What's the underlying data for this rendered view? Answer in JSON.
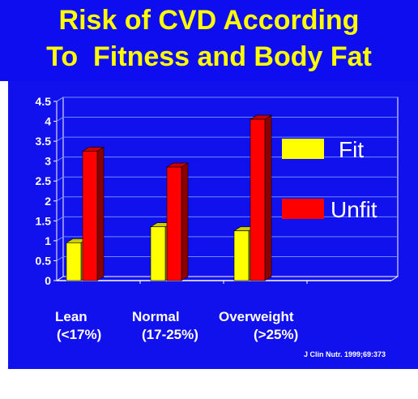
{
  "slide": {
    "title_line_1": "Risk of CVD According",
    "title_line_2": "To  Fitness and Body Fat",
    "citation": "J Clin Nutr. 1999;69:373",
    "colors": {
      "background": "#0d0df0",
      "title": "#ffff00",
      "text": "#ffffff",
      "fit": "#ffff00",
      "unfit": "#ff0000",
      "grid": "#6a8cff"
    }
  },
  "categories": [
    {
      "name": "Lean",
      "range": "(<17%)"
    },
    {
      "name": "Normal",
      "range": "(17-25%)"
    },
    {
      "name": "Overweight",
      "range": "(>25%)"
    }
  ],
  "chart_data": {
    "type": "bar",
    "categories": [
      "Lean (<17%)",
      "Normal (17-25%)",
      "Overweight (>25%)"
    ],
    "series": [
      {
        "name": "Fit",
        "values": [
          0.95,
          1.35,
          1.25
        ],
        "color": "#ffff00"
      },
      {
        "name": "Unfit",
        "values": [
          3.25,
          2.85,
          4.05
        ],
        "color": "#ff0000"
      }
    ],
    "y_ticks": [
      "0",
      "0.5",
      "1",
      "1.5",
      "2",
      "2.5",
      "3",
      "3.5",
      "4",
      "4.5"
    ],
    "ylim": [
      0,
      4.5
    ],
    "grid": true,
    "legend_position": "right",
    "style": "3d"
  }
}
